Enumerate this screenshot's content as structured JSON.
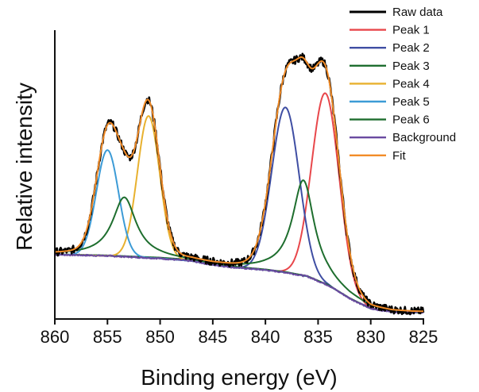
{
  "chart_data": {
    "type": "line",
    "title": "",
    "xlabel": "Binding energy (eV)",
    "ylabel": "Relative intensity",
    "xlim": [
      860,
      825
    ],
    "x_reversed": true,
    "ylim": [
      0,
      1.12
    ],
    "x_ticks": [
      860,
      855,
      850,
      845,
      840,
      835,
      830,
      825
    ],
    "x_tick_labels": [
      "860",
      "855",
      "850",
      "845",
      "840",
      "835",
      "830",
      "825"
    ],
    "y_ticks_shown": false,
    "grid": false,
    "legend_position": "top-right",
    "background_curve": {
      "x": [
        860,
        855,
        850,
        847,
        845,
        843,
        840,
        838,
        836,
        834,
        832,
        830,
        828,
        826,
        825
      ],
      "y": [
        0.25,
        0.245,
        0.235,
        0.225,
        0.21,
        0.2,
        0.19,
        0.18,
        0.165,
        0.13,
        0.08,
        0.04,
        0.028,
        0.025,
        0.025
      ]
    },
    "series": [
      {
        "name": "Raw data",
        "color": "#000000",
        "role": "raw"
      },
      {
        "name": "Peak 1",
        "color": "#e8474b",
        "role": "peak",
        "center": 834.3,
        "amplitude": 0.74,
        "width": 1.3,
        "shape": "gaussian"
      },
      {
        "name": "Peak 2",
        "color": "#3f4ea3",
        "role": "peak",
        "center": 838.1,
        "amplitude": 0.64,
        "width": 1.3,
        "shape": "gaussian"
      },
      {
        "name": "Peak 3",
        "color": "#1e6e2e",
        "role": "peak",
        "center": 836.4,
        "amplitude": 0.37,
        "width": 1.25,
        "shape": "lorentzian"
      },
      {
        "name": "Peak 4",
        "color": "#e8b12f",
        "role": "peak",
        "center": 851.1,
        "amplitude": 0.55,
        "width": 1.05,
        "shape": "gaussian"
      },
      {
        "name": "Peak 5",
        "color": "#3c9bd6",
        "role": "peak",
        "center": 855.0,
        "amplitude": 0.41,
        "width": 1.05,
        "shape": "gaussian"
      },
      {
        "name": "Peak 6",
        "color": "#1e6e2e",
        "role": "peak",
        "center": 853.4,
        "amplitude": 0.23,
        "width": 1.35,
        "shape": "lorentzian"
      },
      {
        "name": "Background",
        "color": "#6a4aa0",
        "role": "background"
      },
      {
        "name": "Fit",
        "color": "#f28c28",
        "role": "fit"
      }
    ]
  }
}
